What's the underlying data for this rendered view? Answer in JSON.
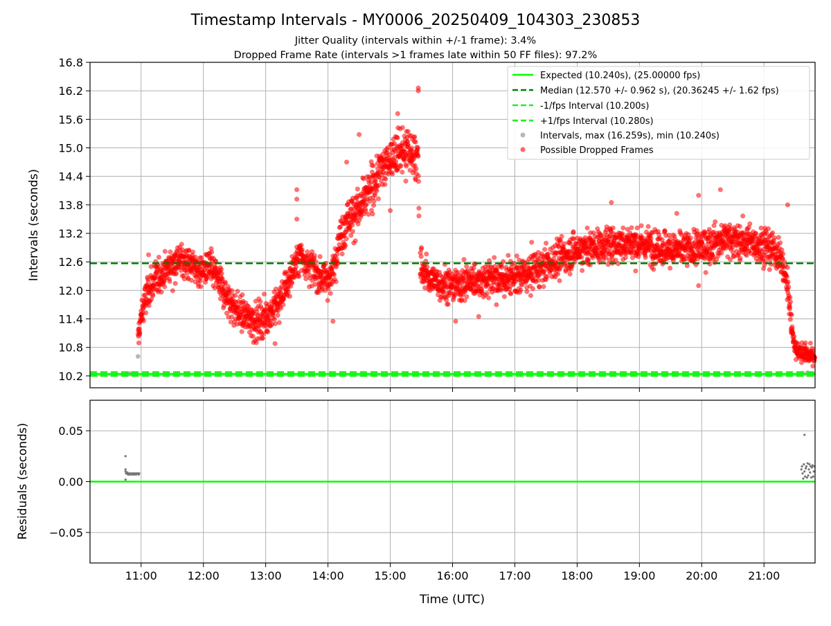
{
  "chart_data": [
    {
      "type": "scatter",
      "title": "Timestamp Intervals - MY0006_20250409_104303_230853",
      "subtitle_lines": [
        "Jitter Quality (intervals within +/-1 frame): 3.4%",
        "Dropped Frame Rate (intervals >1 frames late within 50 FF files): 97.2%"
      ],
      "xlabel": "",
      "ylabel": "Intervals (seconds)",
      "x_unit": "hours UTC",
      "xlim": [
        10.18,
        21.82
      ],
      "ylim": [
        9.95,
        16.8
      ],
      "yticks": [
        10.2,
        10.8,
        11.4,
        12.0,
        12.6,
        13.2,
        13.8,
        14.4,
        15.0,
        15.6,
        16.2,
        16.8
      ],
      "ytick_labels": [
        "10.2",
        "10.8",
        "11.4",
        "12.0",
        "12.6",
        "13.2",
        "13.8",
        "14.4",
        "15.0",
        "15.6",
        "16.2",
        "16.8"
      ],
      "xticks": [
        11,
        12,
        13,
        14,
        15,
        16,
        17,
        18,
        19,
        20,
        21
      ],
      "grid": true,
      "legend_position": "top-right",
      "lines": [
        {
          "name": "Expected (10.240s), (25.00000 fps)",
          "y": 10.24,
          "color": "#00ff00",
          "style": "solid"
        },
        {
          "name": "Median (12.570 +/- 0.962 s), (20.36245 +/- 1.62 fps)",
          "y": 12.57,
          "color": "#008000",
          "style": "dashed"
        },
        {
          "name": "-1/fps Interval (10.200s)",
          "y": 10.2,
          "color": "#22ee22",
          "style": "dashed"
        },
        {
          "name": "+1/fps Interval (10.280s)",
          "y": 10.28,
          "color": "#22ee22",
          "style": "dashed"
        }
      ],
      "series": [
        {
          "name": "Intervals, max (16.259s), min (10.240s)",
          "color": "#999999",
          "points": [
            [
              10.75,
              10.25
            ],
            [
              10.8,
              10.25
            ],
            [
              10.85,
              10.25
            ],
            [
              10.9,
              10.25
            ],
            [
              10.95,
              10.61
            ],
            [
              21.62,
              10.26
            ],
            [
              21.7,
              10.27
            ],
            [
              21.78,
              10.25
            ]
          ]
        },
        {
          "name": "Possible Dropped Frames",
          "color": "#ff0000",
          "profile": [
            [
              10.95,
              10.95
            ],
            [
              11.0,
              11.45
            ],
            [
              11.1,
              11.95
            ],
            [
              11.25,
              12.25
            ],
            [
              11.45,
              12.5
            ],
            [
              11.6,
              12.65
            ],
            [
              11.8,
              12.55
            ],
            [
              11.95,
              12.4
            ],
            [
              12.1,
              12.5
            ],
            [
              12.25,
              12.2
            ],
            [
              12.4,
              11.8
            ],
            [
              12.6,
              11.5
            ],
            [
              12.85,
              11.35
            ],
            [
              13.0,
              11.45
            ],
            [
              13.2,
              11.7
            ],
            [
              13.35,
              12.15
            ],
            [
              13.55,
              12.75
            ],
            [
              13.7,
              12.55
            ],
            [
              13.85,
              12.3
            ],
            [
              14.05,
              12.25
            ],
            [
              14.15,
              12.9
            ],
            [
              14.3,
              13.5
            ],
            [
              14.5,
              13.7
            ],
            [
              14.7,
              14.15
            ],
            [
              14.85,
              14.55
            ],
            [
              15.05,
              14.85
            ],
            [
              15.25,
              14.95
            ],
            [
              15.45,
              14.8
            ],
            [
              15.47,
              12.45
            ],
            [
              15.7,
              12.2
            ],
            [
              16.0,
              12.1
            ],
            [
              16.3,
              12.2
            ],
            [
              16.6,
              12.25
            ],
            [
              17.0,
              12.25
            ],
            [
              17.3,
              12.4
            ],
            [
              17.6,
              12.6
            ],
            [
              18.0,
              12.85
            ],
            [
              18.4,
              12.95
            ],
            [
              18.8,
              13.0
            ],
            [
              19.2,
              12.95
            ],
            [
              19.6,
              12.85
            ],
            [
              20.0,
              12.9
            ],
            [
              20.4,
              13.1
            ],
            [
              20.8,
              13.0
            ],
            [
              21.0,
              12.95
            ],
            [
              21.25,
              12.75
            ],
            [
              21.35,
              12.3
            ],
            [
              21.42,
              11.6
            ],
            [
              21.47,
              11.0
            ],
            [
              21.5,
              10.75
            ],
            [
              21.82,
              10.6
            ]
          ],
          "outliers": [
            [
              15.45,
              16.26
            ],
            [
              15.45,
              16.2
            ],
            [
              15.12,
              15.72
            ],
            [
              14.5,
              15.28
            ],
            [
              13.5,
              14.12
            ],
            [
              13.5,
              13.92
            ],
            [
              13.5,
              13.5
            ],
            [
              14.3,
              14.7
            ],
            [
              20.3,
              14.12
            ],
            [
              19.95,
              14.0
            ],
            [
              18.55,
              13.85
            ],
            [
              21.38,
              13.8
            ],
            [
              15.5,
              12.9
            ],
            [
              16.05,
              11.35
            ],
            [
              16.42,
              11.45
            ],
            [
              11.12,
              12.75
            ],
            [
              12.85,
              10.9
            ],
            [
              13.15,
              10.88
            ],
            [
              14.08,
              11.35
            ],
            [
              15.25,
              14.3
            ],
            [
              15.0,
              13.68
            ],
            [
              19.95,
              12.1
            ],
            [
              19.6,
              13.62
            ]
          ]
        }
      ]
    },
    {
      "type": "scatter",
      "xlabel": "Time (UTC)",
      "ylabel": "Residuals (seconds)",
      "xlim": [
        10.18,
        21.82
      ],
      "ylim": [
        -0.08,
        0.08
      ],
      "yticks": [
        -0.05,
        0.0,
        0.05
      ],
      "ytick_labels": [
        "−0.05",
        "0.00",
        "0.05"
      ],
      "xticks": [
        11,
        12,
        13,
        14,
        15,
        16,
        17,
        18,
        19,
        20,
        21
      ],
      "xtick_labels": [
        "11:00",
        "12:00",
        "13:00",
        "14:00",
        "15:00",
        "16:00",
        "17:00",
        "18:00",
        "19:00",
        "20:00",
        "21:00"
      ],
      "grid": true,
      "zero_line_color": "#00ff00",
      "series": [
        {
          "name": "Residuals",
          "color": "#777777",
          "points": [
            [
              10.75,
              0.025
            ],
            [
              10.75,
              0.012
            ],
            [
              10.75,
              0.01
            ],
            [
              10.76,
              0.008
            ],
            [
              10.77,
              0.008
            ],
            [
              10.78,
              0.009
            ],
            [
              10.79,
              0.007
            ],
            [
              10.8,
              0.008
            ],
            [
              10.81,
              0.007
            ],
            [
              10.82,
              0.008
            ],
            [
              10.83,
              0.007
            ],
            [
              10.84,
              0.008
            ],
            [
              10.85,
              0.008
            ],
            [
              10.86,
              0.007
            ],
            [
              10.87,
              0.008
            ],
            [
              10.88,
              0.008
            ],
            [
              10.89,
              0.007
            ],
            [
              10.9,
              0.008
            ],
            [
              10.91,
              0.008
            ],
            [
              10.92,
              0.007
            ],
            [
              10.93,
              0.008
            ],
            [
              10.94,
              0.008
            ],
            [
              10.95,
              0.008
            ],
            [
              10.96,
              0.007
            ],
            [
              10.97,
              0.008
            ],
            [
              10.75,
              0.002
            ],
            [
              21.65,
              0.046
            ],
            [
              21.6,
              0.012
            ],
            [
              21.61,
              0.015
            ],
            [
              21.62,
              0.008
            ],
            [
              21.63,
              0.003
            ],
            [
              21.64,
              0.017
            ],
            [
              21.65,
              0.01
            ],
            [
              21.66,
              0.005
            ],
            [
              21.67,
              0.013
            ],
            [
              21.68,
              0.015
            ],
            [
              21.69,
              0.004
            ],
            [
              21.7,
              0.018
            ],
            [
              21.71,
              0.006
            ],
            [
              21.72,
              0.012
            ],
            [
              21.73,
              0.017
            ],
            [
              21.74,
              0.009
            ],
            [
              21.75,
              0.015
            ],
            [
              21.76,
              0.004
            ],
            [
              21.77,
              0.014
            ],
            [
              21.78,
              0.016
            ],
            [
              21.79,
              0.005
            ],
            [
              21.8,
              0.01
            ],
            [
              21.81,
              0.015
            ]
          ]
        }
      ]
    }
  ]
}
